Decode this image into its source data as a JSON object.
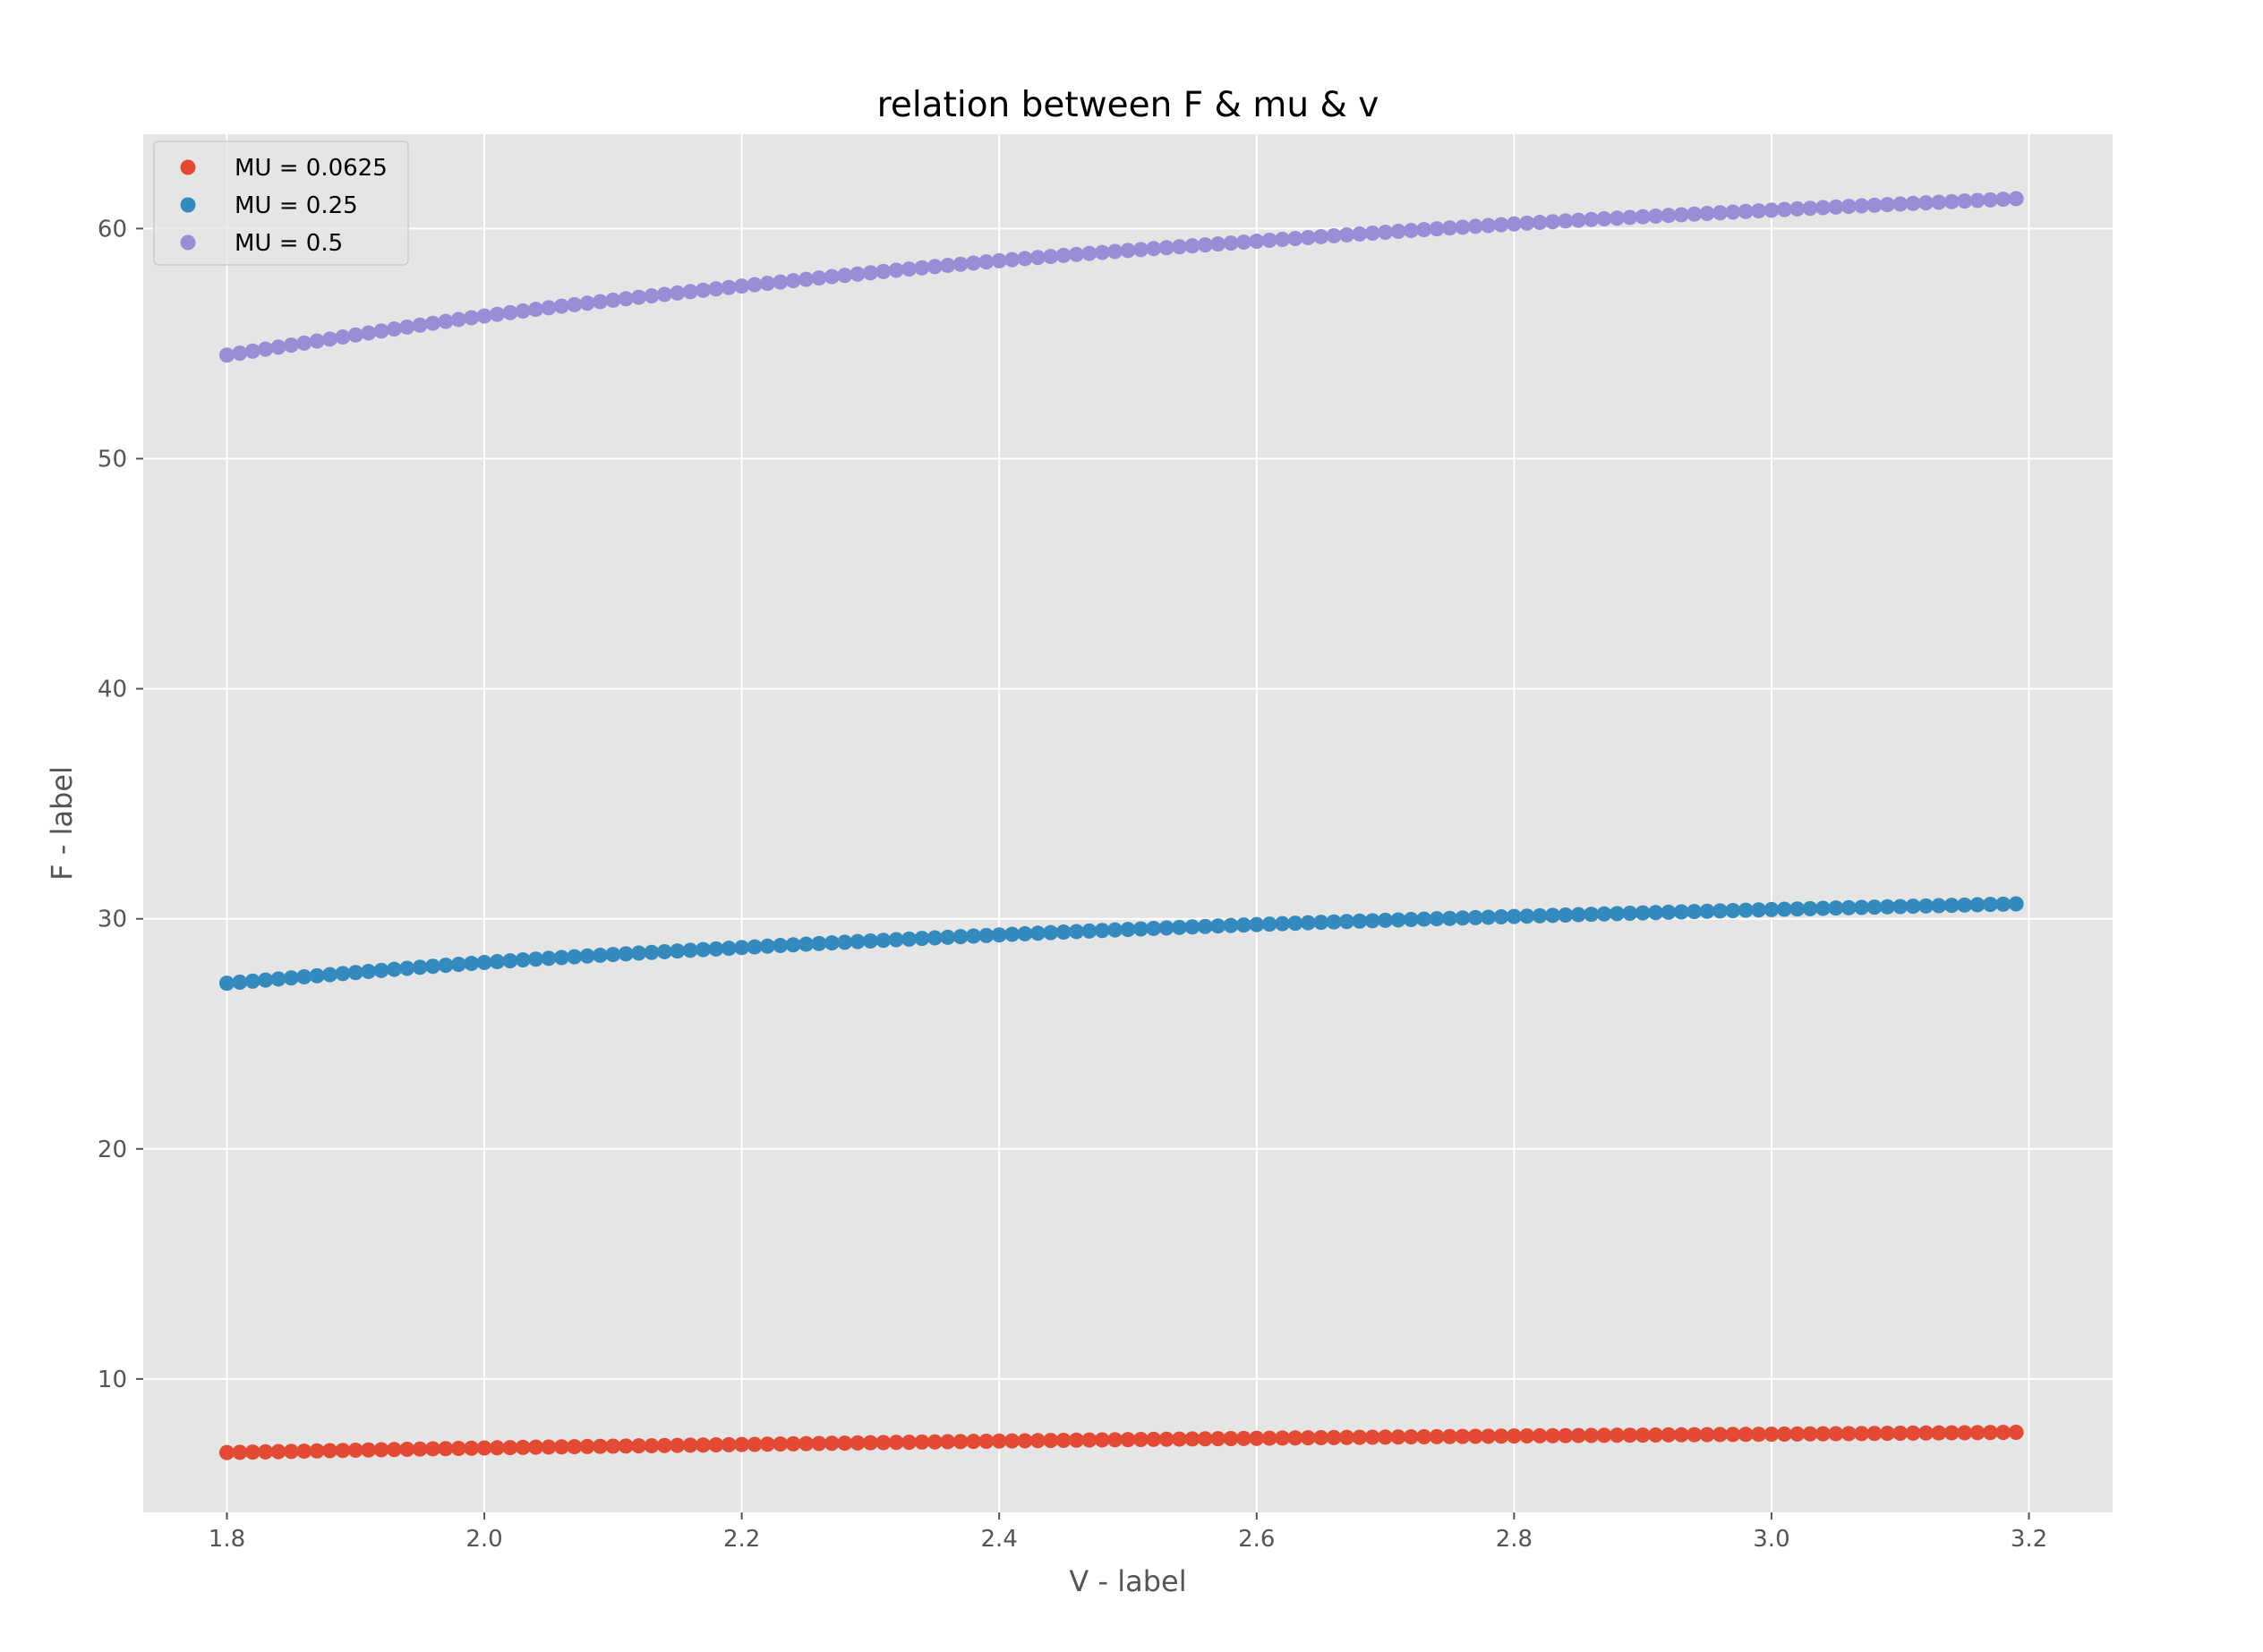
{
  "chart_data": {
    "type": "scatter",
    "title": "relation between F & mu & v",
    "xlabel": "V - label",
    "ylabel": "F - label",
    "xlim": [
      1.735,
      3.265
    ],
    "ylim": [
      4.2,
      64.1
    ],
    "xticks": [
      1.8,
      2.0,
      2.2,
      2.4,
      2.6,
      2.8,
      3.0,
      3.2
    ],
    "xtick_labels": [
      "1.8",
      "2.0",
      "2.2",
      "2.4",
      "2.6",
      "2.8",
      "3.0",
      "3.2"
    ],
    "yticks": [
      10,
      20,
      30,
      40,
      50,
      60
    ],
    "ytick_labels": [
      "10",
      "20",
      "30",
      "40",
      "50",
      "60"
    ],
    "grid": true,
    "legend_position": "top-left",
    "x": {
      "start": 1.8,
      "stop": 3.19,
      "step": 0.01
    },
    "series": [
      {
        "name": "MU = 0.0625",
        "color": "#E24A33",
        "anchors": [
          [
            1.8,
            6.8
          ],
          [
            2.0,
            7.0
          ],
          [
            2.2,
            7.15
          ],
          [
            2.4,
            7.3
          ],
          [
            2.6,
            7.42
          ],
          [
            2.8,
            7.52
          ],
          [
            3.0,
            7.6
          ],
          [
            3.19,
            7.68
          ]
        ]
      },
      {
        "name": "MU = 0.25",
        "color": "#348ABD",
        "anchors": [
          [
            1.8,
            27.2
          ],
          [
            2.0,
            28.1
          ],
          [
            2.2,
            28.75
          ],
          [
            2.4,
            29.3
          ],
          [
            2.6,
            29.75
          ],
          [
            2.8,
            30.1
          ],
          [
            3.0,
            30.4
          ],
          [
            3.19,
            30.65
          ]
        ]
      },
      {
        "name": "MU = 0.5",
        "color": "#988ED5",
        "anchors": [
          [
            1.8,
            54.5
          ],
          [
            2.0,
            56.2
          ],
          [
            2.2,
            57.5
          ],
          [
            2.4,
            58.6
          ],
          [
            2.6,
            59.45
          ],
          [
            2.8,
            60.2
          ],
          [
            3.0,
            60.8
          ],
          [
            3.19,
            61.3
          ]
        ]
      }
    ]
  },
  "colors": {
    "plot_background": "#E5E5E5",
    "grid": "#FFFFFF",
    "tick_text": "#555555"
  }
}
